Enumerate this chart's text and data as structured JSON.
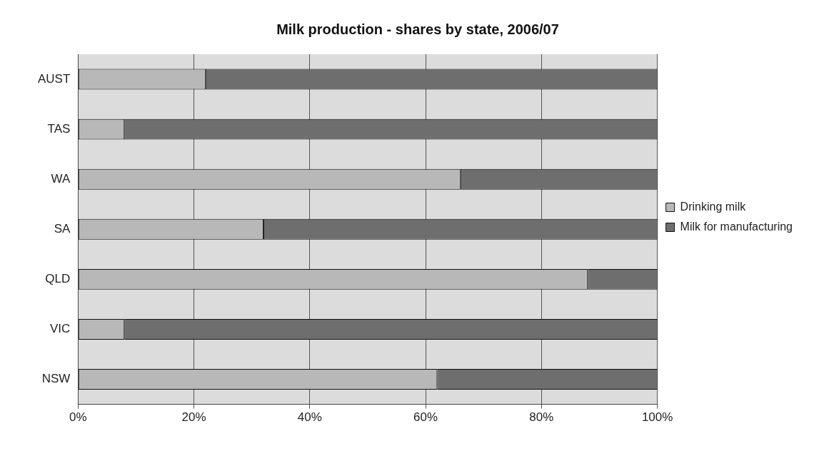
{
  "chart_data": {
    "type": "bar",
    "title": "Milk production - shares by state, 2006/07",
    "orientation": "horizontal",
    "stacked": true,
    "categories": [
      "AUST",
      "TAS",
      "WA",
      "SA",
      "QLD",
      "VIC",
      "NSW"
    ],
    "series": [
      {
        "name": "Drinking milk",
        "color": "#b8b8b8",
        "values": [
          22,
          8,
          66,
          32,
          88,
          8,
          62
        ]
      },
      {
        "name": "Milk for manufacturing",
        "color": "#6e6e6e",
        "values": [
          78,
          92,
          34,
          68,
          12,
          92,
          38
        ]
      }
    ],
    "xlim": [
      0,
      100
    ],
    "xticks": [
      {
        "value": 0,
        "label": "0%"
      },
      {
        "value": 20,
        "label": "20%"
      },
      {
        "value": 40,
        "label": "40%"
      },
      {
        "value": 60,
        "label": "60%"
      },
      {
        "value": 80,
        "label": "80%"
      },
      {
        "value": 100,
        "label": "100%"
      }
    ],
    "grid": "x",
    "legend": "right"
  }
}
